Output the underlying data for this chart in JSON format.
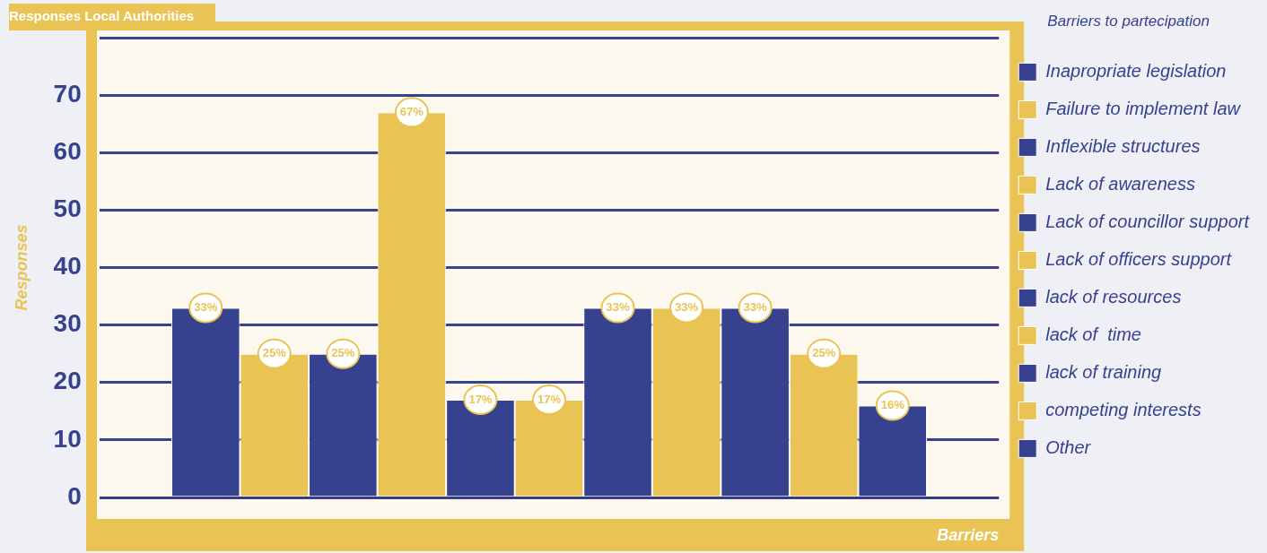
{
  "chart_data": {
    "type": "bar",
    "title": "Responses Local Authorities",
    "xlabel": "Barriers",
    "ylabel": "Responses",
    "legend_title": "Barriers to partecipation",
    "categories": [
      null
    ],
    "series": [
      {
        "name": "Inapropriate legislation",
        "color": "#36418f",
        "values": [
          33
        ],
        "value_labels": [
          "33%"
        ]
      },
      {
        "name": "Failure to implement law",
        "color": "#e9c455",
        "values": [
          25
        ],
        "value_labels": [
          "25%"
        ]
      },
      {
        "name": "Inflexible structures",
        "color": "#36418f",
        "values": [
          25
        ],
        "value_labels": [
          "25%"
        ]
      },
      {
        "name": "Lack of awareness",
        "color": "#e9c455",
        "values": [
          67
        ],
        "value_labels": [
          "67%"
        ]
      },
      {
        "name": "Lack of councillor support",
        "color": "#36418f",
        "values": [
          17
        ],
        "value_labels": [
          "17%"
        ]
      },
      {
        "name": "Lack of officers support",
        "color": "#e9c455",
        "values": [
          17
        ],
        "value_labels": [
          "17%"
        ]
      },
      {
        "name": "lack of resources",
        "color": "#36418f",
        "values": [
          33
        ],
        "value_labels": [
          "33%"
        ]
      },
      {
        "name": "lack of  time",
        "color": "#e9c455",
        "values": [
          33
        ],
        "value_labels": [
          "33%"
        ]
      },
      {
        "name": "lack of training",
        "color": "#36418f",
        "values": [
          33
        ],
        "value_labels": [
          "33%"
        ]
      },
      {
        "name": "competing interests",
        "color": "#e9c455",
        "values": [
          25
        ],
        "value_labels": [
          "25%"
        ]
      },
      {
        "name": "Other",
        "color": "#36418f",
        "values": [
          16
        ],
        "value_labels": [
          "16%"
        ]
      }
    ],
    "ylim": [
      0,
      80
    ],
    "yticks": [
      0,
      10,
      20,
      30,
      40,
      50,
      60,
      70,
      {
        "value": 80,
        "label": null
      }
    ],
    "grid": "y",
    "legend": "right"
  }
}
